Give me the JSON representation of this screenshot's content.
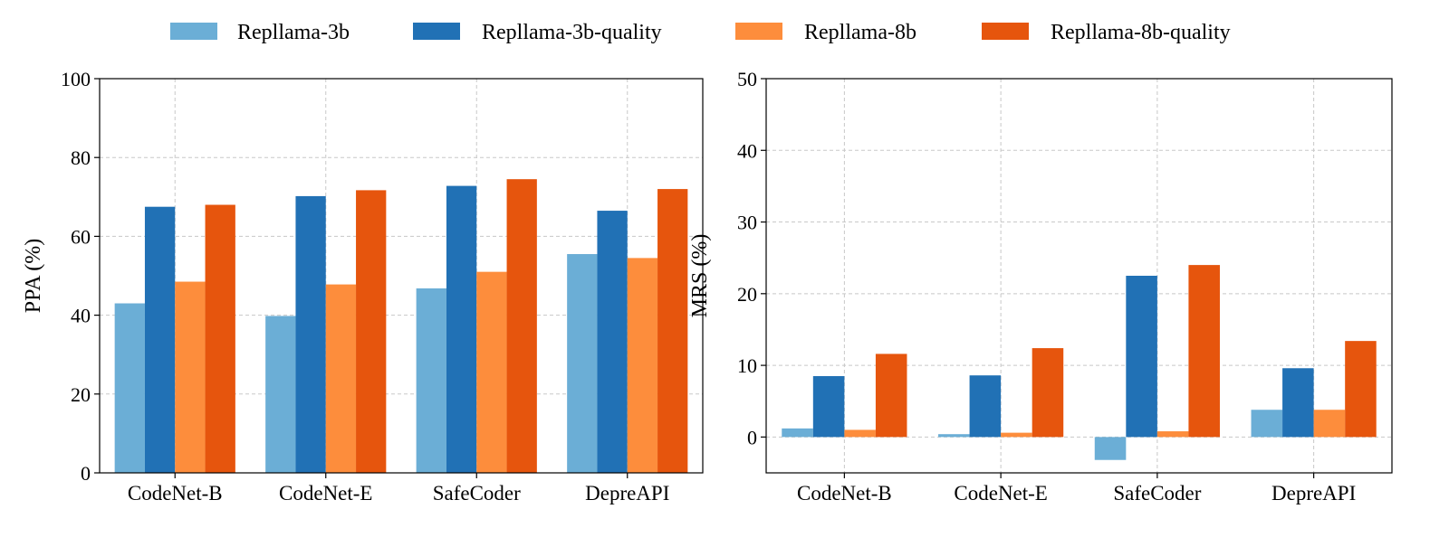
{
  "legend": [
    {
      "label": "Repllama-3b",
      "color": "#6baed6"
    },
    {
      "label": "Repllama-3b-quality",
      "color": "#2171b5"
    },
    {
      "label": "Repllama-8b",
      "color": "#fd8d3c"
    },
    {
      "label": "Repllama-8b-quality",
      "color": "#e6550d"
    }
  ],
  "chart_data": [
    {
      "type": "bar",
      "title": "",
      "xlabel": "",
      "ylabel": "PPA (%)",
      "ylim": [
        0,
        100
      ],
      "yticks": [
        0,
        20,
        40,
        60,
        80,
        100
      ],
      "grid": true,
      "categories": [
        "CodeNet-B",
        "CodeNet-E",
        "SafeCoder",
        "DepreAPI"
      ],
      "series": [
        {
          "name": "Repllama-3b",
          "color": "#6baed6",
          "values": [
            43.0,
            39.8,
            46.8,
            55.5
          ]
        },
        {
          "name": "Repllama-3b-quality",
          "color": "#2171b5",
          "values": [
            67.5,
            70.2,
            72.8,
            66.5
          ]
        },
        {
          "name": "Repllama-8b",
          "color": "#fd8d3c",
          "values": [
            48.5,
            47.8,
            51.0,
            54.5
          ]
        },
        {
          "name": "Repllama-8b-quality",
          "color": "#e6550d",
          "values": [
            68.0,
            71.7,
            74.5,
            72.0
          ]
        }
      ]
    },
    {
      "type": "bar",
      "title": "",
      "xlabel": "",
      "ylabel": "MRS (%)",
      "ylim": [
        -5,
        50
      ],
      "yticks": [
        0,
        10,
        20,
        30,
        40,
        50
      ],
      "grid": true,
      "categories": [
        "CodeNet-B",
        "CodeNet-E",
        "SafeCoder",
        "DepreAPI"
      ],
      "series": [
        {
          "name": "Repllama-3b",
          "color": "#6baed6",
          "values": [
            1.2,
            0.4,
            -3.2,
            3.8
          ]
        },
        {
          "name": "Repllama-3b-quality",
          "color": "#2171b5",
          "values": [
            8.5,
            8.6,
            22.5,
            9.6
          ]
        },
        {
          "name": "Repllama-8b",
          "color": "#fd8d3c",
          "values": [
            1.0,
            0.6,
            0.8,
            3.8
          ]
        },
        {
          "name": "Repllama-8b-quality",
          "color": "#e6550d",
          "values": [
            11.6,
            12.4,
            24.0,
            13.4
          ]
        }
      ]
    }
  ]
}
